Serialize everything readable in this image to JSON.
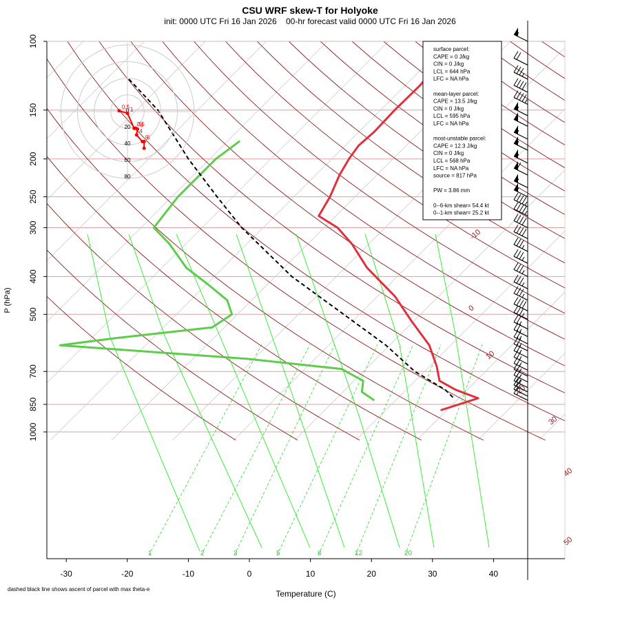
{
  "title": "CSU WRF skew-T for Holyoke",
  "subtitle": "init: 0000 UTC Fri 16 Jan 2026    00-hr forecast valid 0000 UTC Fri 16 Jan 2026",
  "footnote": "dashed black line shows ascent of parcel with max theta-e",
  "colors": {
    "temperature": "#e0303c",
    "dewpoint": "#5ccc4a",
    "dry_adiabat": "#8b1a1a",
    "moist_adiabat": "#22ee22",
    "mixing_ratio": "#22dd22",
    "isotherm": "#cccccc",
    "isobar": "#d9a0a0",
    "parcel": "#000000",
    "hodograph": "#ff0000"
  },
  "chart_data": {
    "type": "line",
    "xlabel": "Temperature (C)",
    "ylabel": "P (hPa)",
    "x_ticks": [
      -30,
      -20,
      -10,
      0,
      10,
      20,
      30,
      40
    ],
    "y_ticks": [
      100,
      150,
      200,
      250,
      300,
      400,
      500,
      700,
      850,
      1000
    ],
    "isotherm_labels": [
      -10,
      0,
      10,
      20,
      30,
      40,
      50
    ],
    "mixing_ratio_labels": [
      "1",
      "2",
      "3",
      "5",
      "8",
      "12",
      "20"
    ],
    "series": [
      {
        "key": "temperature",
        "pressure": [
          108,
          130,
          150,
          170,
          185,
          200,
          220,
          250,
          280,
          300,
          330,
          380,
          450,
          520,
          600,
          680,
          740,
          780,
          820,
          880
        ],
        "temperature": [
          -48.3,
          -47.6,
          -47.7,
          -47.5,
          -47.8,
          -47.2,
          -46.1,
          -44.1,
          -42.8,
          -37.8,
          -32.8,
          -26.4,
          -17.1,
          -10.4,
          -3.5,
          1.2,
          4.0,
          8.1,
          13.2,
          9.0
        ]
      },
      {
        "key": "dewpoint",
        "pressure": [
          180,
          200,
          250,
          300,
          330,
          380,
          420,
          460,
          500,
          540,
          575,
          600,
          650,
          690,
          740,
          790,
          830
        ],
        "temperature": [
          -68.0,
          -69.0,
          -69.0,
          -67.9,
          -62.7,
          -56.0,
          -49.6,
          -44.0,
          -40.9,
          -42.0,
          -56.0,
          -64.0,
          -31.1,
          -14.0,
          -8.5,
          -6.9,
          -3.5
        ]
      },
      {
        "key": "parcel",
        "pressure": [
          125,
          150,
          200,
          250,
          300,
          400,
          500,
          600,
          700,
          780,
          817
        ],
        "temperature": [
          -96.3,
          -86.5,
          -73.5,
          -62.6,
          -53.5,
          -37.3,
          -22.6,
          -10.6,
          -1.6,
          6.4,
          9.0
        ]
      }
    ],
    "hodograph": {
      "rings": [
        20,
        40,
        60,
        80
      ],
      "ring_labels": [
        "0",
        "20",
        "40",
        "60",
        "80"
      ],
      "u": [
        -10,
        0,
        8,
        10,
        12,
        11,
        18,
        20,
        20
      ],
      "v": [
        -1,
        2,
        20,
        20,
        21,
        28,
        36,
        36,
        44
      ],
      "labels": [
        "0.5",
        "1",
        "0.5",
        "5",
        "3",
        "4",
        "5",
        "6"
      ]
    },
    "wind_barbs": [
      {
        "p": 100,
        "speed": 55
      },
      {
        "p": 115,
        "speed": 20
      },
      {
        "p": 125,
        "speed": 35
      },
      {
        "p": 135,
        "speed": 40
      },
      {
        "p": 145,
        "speed": 45
      },
      {
        "p": 155,
        "speed": 55
      },
      {
        "p": 165,
        "speed": 50
      },
      {
        "p": 178,
        "speed": 55
      },
      {
        "p": 190,
        "speed": 55
      },
      {
        "p": 205,
        "speed": 55
      },
      {
        "p": 220,
        "speed": 60
      },
      {
        "p": 237,
        "speed": 55
      },
      {
        "p": 250,
        "speed": 55
      },
      {
        "p": 265,
        "speed": 45
      },
      {
        "p": 280,
        "speed": 45
      },
      {
        "p": 300,
        "speed": 40
      },
      {
        "p": 320,
        "speed": 40
      },
      {
        "p": 345,
        "speed": 35
      },
      {
        "p": 370,
        "speed": 35
      },
      {
        "p": 400,
        "speed": 35
      },
      {
        "p": 430,
        "speed": 35
      },
      {
        "p": 460,
        "speed": 35
      },
      {
        "p": 490,
        "speed": 40
      },
      {
        "p": 515,
        "speed": 35
      },
      {
        "p": 545,
        "speed": 25
      },
      {
        "p": 570,
        "speed": 25
      },
      {
        "p": 595,
        "speed": 25
      },
      {
        "p": 620,
        "speed": 25
      },
      {
        "p": 645,
        "speed": 25
      },
      {
        "p": 670,
        "speed": 25
      },
      {
        "p": 695,
        "speed": 25
      },
      {
        "p": 720,
        "speed": 25
      },
      {
        "p": 745,
        "speed": 25
      },
      {
        "p": 770,
        "speed": 25
      },
      {
        "p": 790,
        "speed": 20
      },
      {
        "p": 810,
        "speed": 20
      },
      {
        "p": 830,
        "speed": 15
      }
    ],
    "stats_lines": [
      "surface parcel:",
      "CAPE = 0 J/kg",
      "CIN = 0 J/kg",
      "LCL = 644 hPa",
      "LFC = NA hPa",
      "",
      "mean-layer parcel:",
      "CAPE = 13.5 J/kg",
      "CIN = 0 J/kg",
      "LCL = 595 hPa",
      "LFC = NA hPa",
      "",
      "most-unstable parcel:",
      "CAPE = 12.3 J/kg",
      "CIN = 0 J/kg",
      "LCL = 568 hPa",
      "LFC = NA hPa",
      "source = 817 hPa",
      "",
      "PW =  3.86 mm",
      "",
      "0--6-km shear= 54.4 kt",
      "0--1-km shear= 25.2 kt"
    ]
  }
}
